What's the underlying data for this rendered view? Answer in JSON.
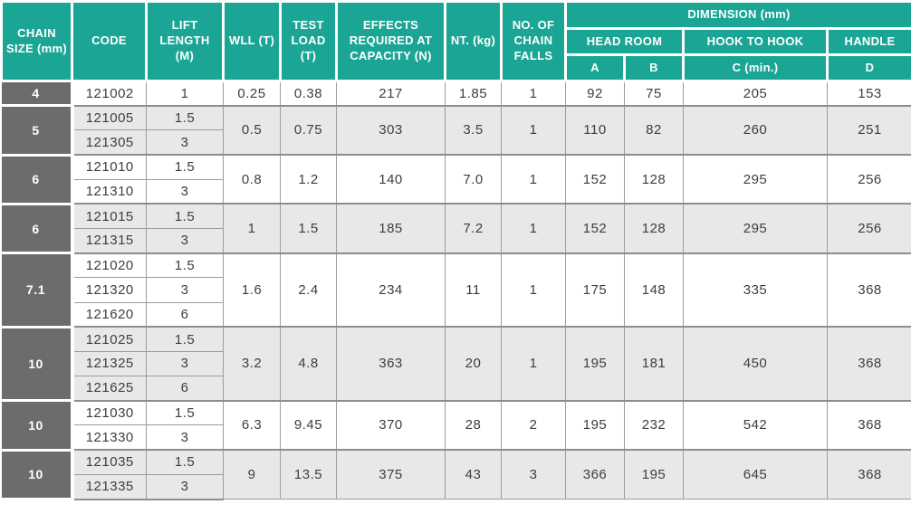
{
  "colors": {
    "header_teal": "#1ba595",
    "header_text": "#ffffff",
    "chain_gray": "#6c6c6c",
    "row_base": "#ffffff",
    "row_alt": "#e8e8e8",
    "border_gray": "#9c9c9c",
    "group_border": "#8d8d8d",
    "body_text": "#3e3e3e"
  },
  "table": {
    "headers": {
      "chain_size": "CHAIN SIZE (mm)",
      "code": "CODE",
      "lift_length": "LIFT LENGTH (M)",
      "wll": "WLL (T)",
      "test_load": "TEST LOAD (T)",
      "effects": "EFFECTS REQUIRED AT CAPACITY (N)",
      "net_weight": "NT. (kg)",
      "chain_falls": "NO. OF CHAIN FALLS",
      "dimension": "DIMENSION (mm)",
      "head_room": "HEAD ROOM",
      "hook_to_hook": "HOOK TO HOOK",
      "handle": "HANDLE",
      "dim_a": "A",
      "dim_b": "B",
      "dim_c": "C (min.)",
      "dim_d": "D"
    },
    "groups": [
      {
        "size": "4",
        "rows": [
          {
            "code": "121002",
            "lift_length": "1"
          }
        ],
        "wll": "0.25",
        "test_load": "0.38",
        "effects": "217",
        "net_weight": "1.85",
        "chain_falls": "1",
        "dim_a": "92",
        "dim_b": "75",
        "dim_c": "205",
        "dim_d": "153"
      },
      {
        "size": "5",
        "rows": [
          {
            "code": "121005",
            "lift_length": "1.5"
          },
          {
            "code": "121305",
            "lift_length": "3"
          }
        ],
        "wll": "0.5",
        "test_load": "0.75",
        "effects": "303",
        "net_weight": "3.5",
        "chain_falls": "1",
        "dim_a": "110",
        "dim_b": "82",
        "dim_c": "260",
        "dim_d": "251"
      },
      {
        "size": "6",
        "rows": [
          {
            "code": "121010",
            "lift_length": "1.5"
          },
          {
            "code": "121310",
            "lift_length": "3"
          }
        ],
        "wll": "0.8",
        "test_load": "1.2",
        "effects": "140",
        "net_weight": "7.0",
        "chain_falls": "1",
        "dim_a": "152",
        "dim_b": "128",
        "dim_c": "295",
        "dim_d": "256"
      },
      {
        "size": "6",
        "rows": [
          {
            "code": "121015",
            "lift_length": "1.5"
          },
          {
            "code": "121315",
            "lift_length": "3"
          }
        ],
        "wll": "1",
        "test_load": "1.5",
        "effects": "185",
        "net_weight": "7.2",
        "chain_falls": "1",
        "dim_a": "152",
        "dim_b": "128",
        "dim_c": "295",
        "dim_d": "256"
      },
      {
        "size": "7.1",
        "rows": [
          {
            "code": "121020",
            "lift_length": "1.5"
          },
          {
            "code": "121320",
            "lift_length": "3"
          },
          {
            "code": "121620",
            "lift_length": "6"
          }
        ],
        "wll": "1.6",
        "test_load": "2.4",
        "effects": "234",
        "net_weight": "11",
        "chain_falls": "1",
        "dim_a": "175",
        "dim_b": "148",
        "dim_c": "335",
        "dim_d": "368"
      },
      {
        "size": "10",
        "rows": [
          {
            "code": "121025",
            "lift_length": "1.5"
          },
          {
            "code": "121325",
            "lift_length": "3"
          },
          {
            "code": "121625",
            "lift_length": "6"
          }
        ],
        "wll": "3.2",
        "test_load": "4.8",
        "effects": "363",
        "net_weight": "20",
        "chain_falls": "1",
        "dim_a": "195",
        "dim_b": "181",
        "dim_c": "450",
        "dim_d": "368"
      },
      {
        "size": "10",
        "rows": [
          {
            "code": "121030",
            "lift_length": "1.5"
          },
          {
            "code": "121330",
            "lift_length": "3"
          }
        ],
        "wll": "6.3",
        "test_load": "9.45",
        "effects": "370",
        "net_weight": "28",
        "chain_falls": "2",
        "dim_a": "195",
        "dim_b": "232",
        "dim_c": "542",
        "dim_d": "368"
      },
      {
        "size": "10",
        "rows": [
          {
            "code": "121035",
            "lift_length": "1.5"
          },
          {
            "code": "121335",
            "lift_length": "3"
          }
        ],
        "wll": "9",
        "test_load": "13.5",
        "effects": "375",
        "net_weight": "43",
        "chain_falls": "3",
        "dim_a": "366",
        "dim_b": "195",
        "dim_c": "645",
        "dim_d": "368"
      }
    ]
  }
}
